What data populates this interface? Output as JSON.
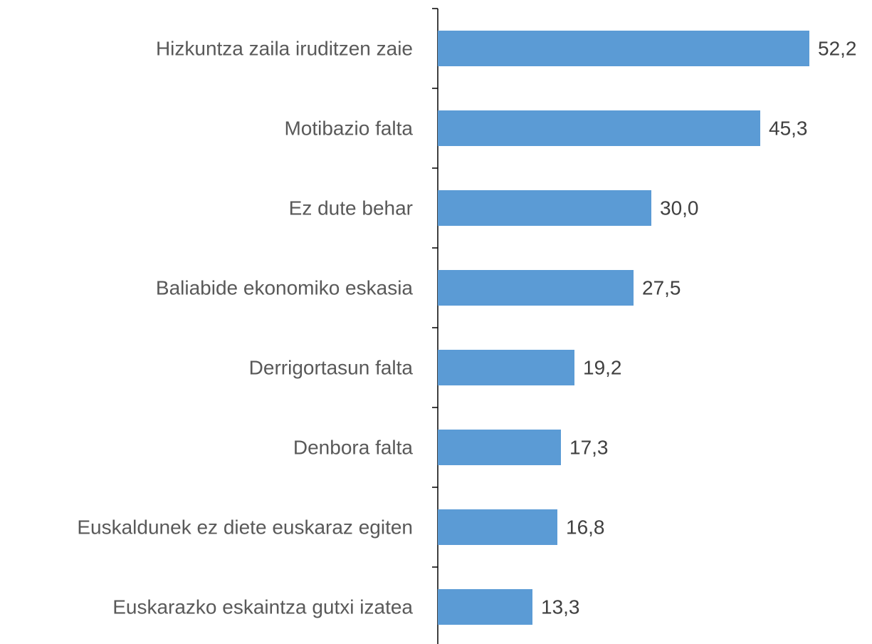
{
  "chart_data": {
    "type": "hbar",
    "categories": [
      "Hizkuntza zaila iruditzen zaie",
      "Motibazio falta",
      "Ez dute behar",
      "Baliabide ekonomiko eskasia",
      "Derrigortasun falta",
      "Denbora falta",
      "Euskaldunek ez diete euskaraz egiten",
      "Euskarazko eskaintza gutxi izatea"
    ],
    "values": [
      52.2,
      45.3,
      30.0,
      27.5,
      19.2,
      17.3,
      16.8,
      13.3
    ],
    "value_labels": [
      "52,2",
      "45,3",
      "30,0",
      "27,5",
      "19,2",
      "17,3",
      "16,8",
      "13,3"
    ],
    "color": "#5b9bd5",
    "xlim": [
      0,
      61
    ]
  }
}
